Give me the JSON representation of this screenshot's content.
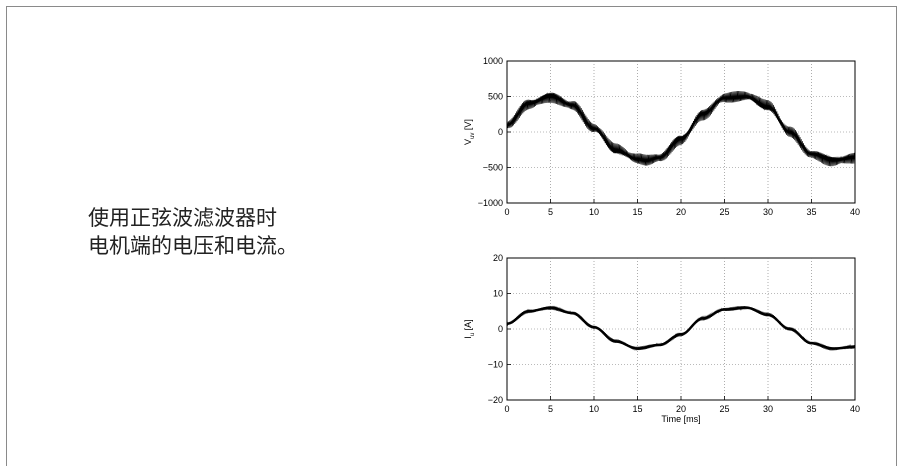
{
  "caption": {
    "line1": "使用正弦波滤波器时",
    "line2": "电机端的电压和电流。"
  },
  "chart_data": [
    {
      "type": "line",
      "title": "",
      "xlabel": "",
      "ylabel_main": "V",
      "ylabel_sub": "uv",
      "ylabel_unit": "[V]",
      "xlim": [
        0,
        40
      ],
      "ylim": [
        -1000,
        1000
      ],
      "x_ticks": [
        "0",
        "5",
        "10",
        "15",
        "20",
        "25",
        "30",
        "35",
        "40"
      ],
      "y_ticks": [
        "1000",
        "500",
        "0",
        "−500",
        "−1000"
      ],
      "grid": true,
      "series": [
        {
          "x": [
            0,
            2.5,
            5,
            7.5,
            10,
            12.5,
            15,
            16,
            17.5,
            20,
            22.5,
            25,
            27.5,
            30,
            32.5,
            35,
            37.5,
            40
          ],
          "y": [
            100,
            400,
            500,
            380,
            50,
            -250,
            -380,
            -400,
            -360,
            -100,
            250,
            480,
            500,
            360,
            0,
            -310,
            -400,
            -360
          ],
          "ripple_amplitude": 90
        }
      ],
      "color": "#000000"
    },
    {
      "type": "line",
      "title": "",
      "xlabel": "Time [ms]",
      "ylabel_main": "I",
      "ylabel_sub": "u",
      "ylabel_unit": "[A]",
      "xlim": [
        0,
        40
      ],
      "ylim": [
        -20,
        20
      ],
      "x_ticks": [
        "0",
        "5",
        "10",
        "15",
        "20",
        "25",
        "30",
        "35",
        "40"
      ],
      "y_ticks": [
        "20",
        "10",
        "0",
        "−10",
        "−20"
      ],
      "grid": true,
      "series": [
        {
          "x": [
            0,
            2.5,
            5,
            7.5,
            10,
            12.5,
            15,
            17.5,
            20,
            22.5,
            25,
            27.5,
            30,
            32.5,
            35,
            37.5,
            40
          ],
          "y": [
            1.5,
            5,
            6,
            4.5,
            0.5,
            -3.5,
            -5.5,
            -4.5,
            -1.5,
            3,
            5.5,
            6,
            4,
            0,
            -4,
            -5.5,
            -5
          ],
          "ripple_amplitude": 0.6
        }
      ],
      "color": "#000000"
    }
  ]
}
